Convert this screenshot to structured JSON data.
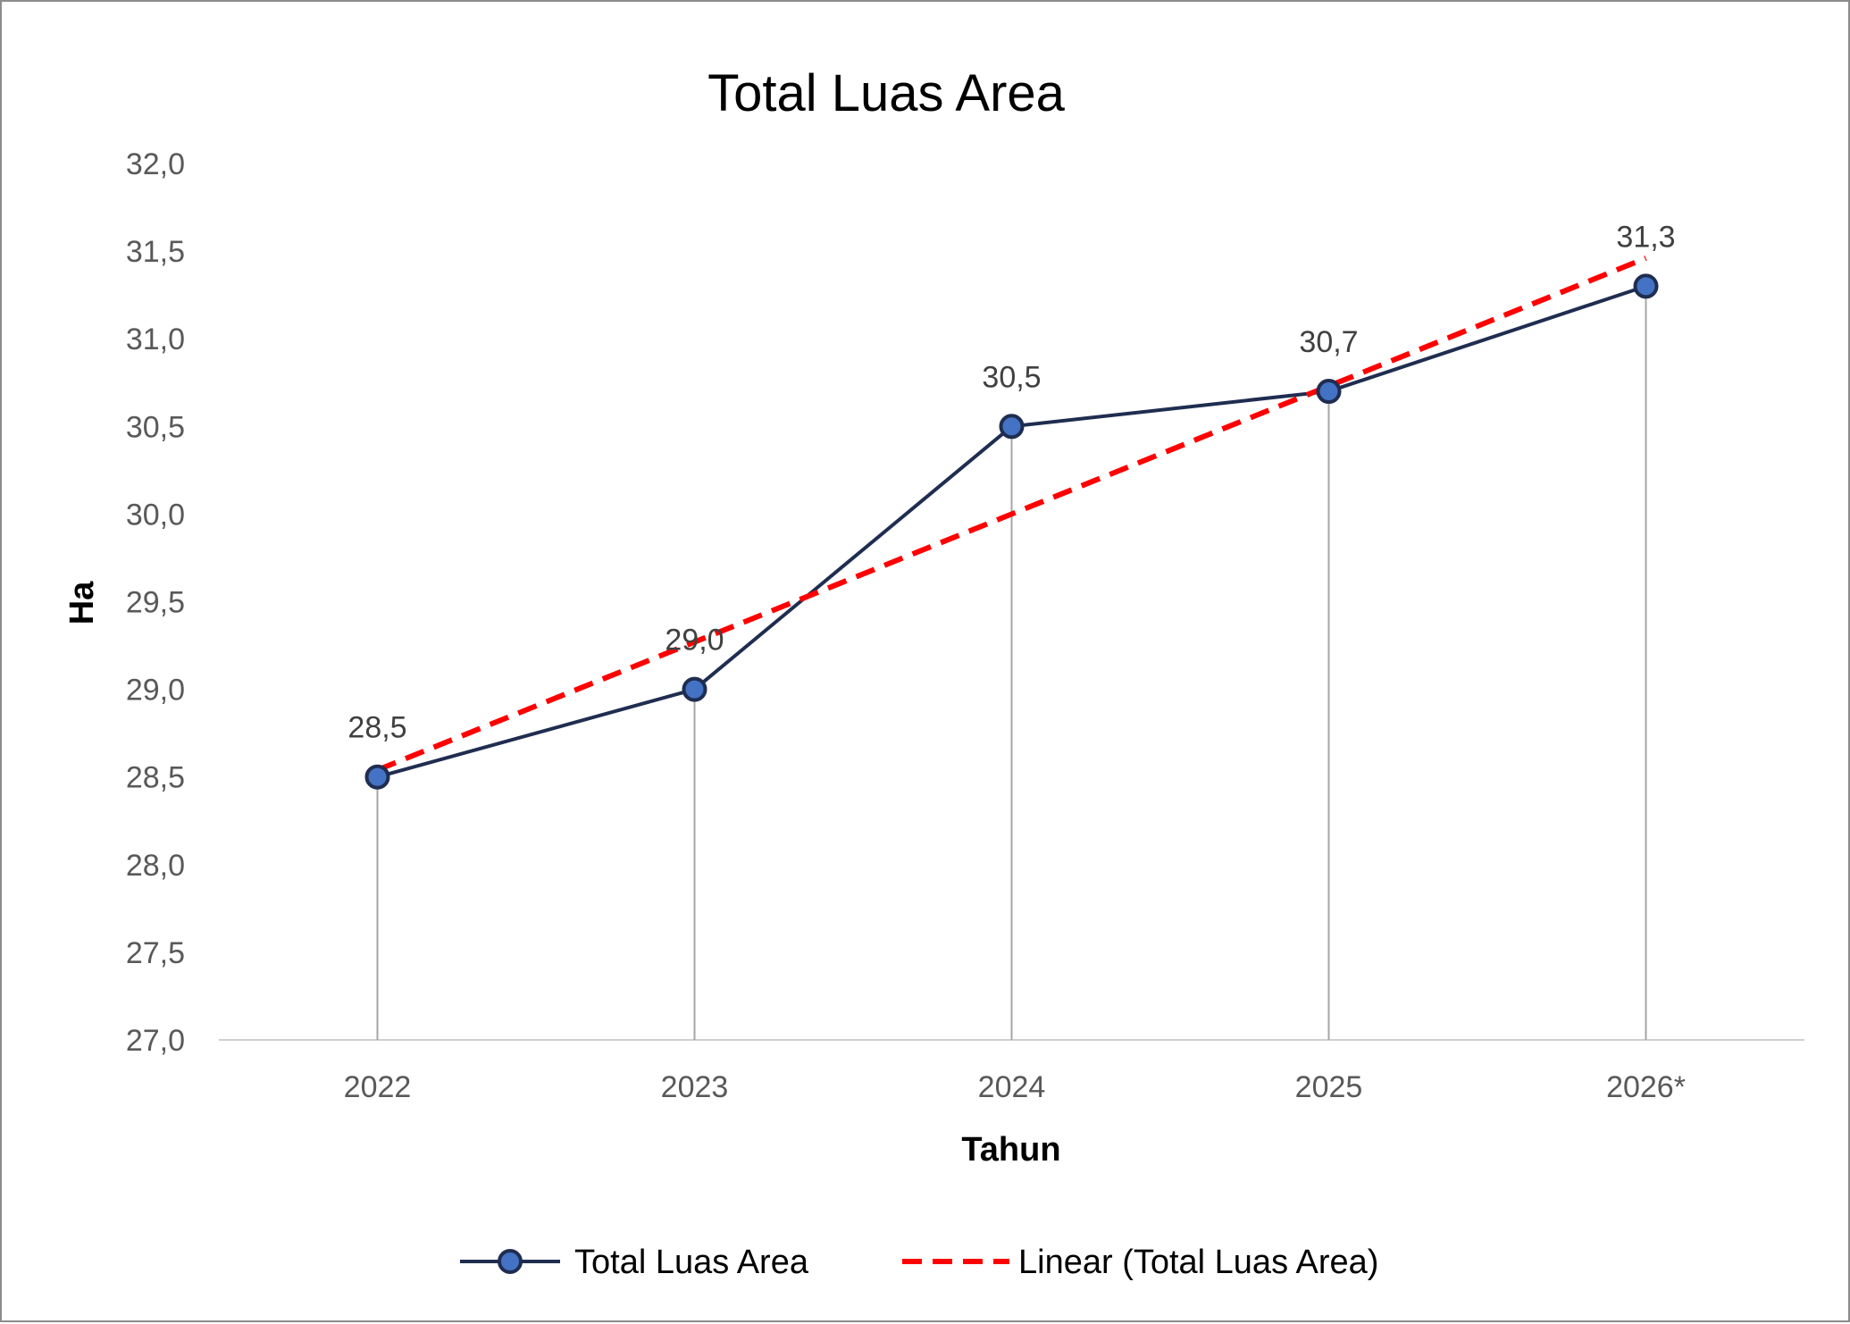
{
  "chart_data": {
    "type": "line",
    "title": "Total Luas Area",
    "xlabel": "Tahun",
    "ylabel": "Ha",
    "categories": [
      "2022",
      "2023",
      "2024",
      "2025",
      "2026*"
    ],
    "ylim": [
      27.0,
      32.0
    ],
    "ytick_step": 0.5,
    "yticks": [
      "27,0",
      "27,5",
      "28,0",
      "28,5",
      "29,0",
      "29,5",
      "30,0",
      "30,5",
      "31,0",
      "31,5",
      "32,0"
    ],
    "series": [
      {
        "name": "Total Luas Area",
        "values": [
          28.5,
          29.0,
          30.5,
          30.7,
          31.3
        ],
        "data_labels": [
          "28,5",
          "29,0",
          "30,5",
          "30,7",
          "31,3"
        ],
        "color": "#1f2d50",
        "marker_color": "#4472c4",
        "drop_lines": true
      }
    ],
    "trendline": {
      "name": "Linear (Total Luas Area)",
      "kind": "linear",
      "color": "#ff0000",
      "style": "dashed"
    },
    "grid": false,
    "legend": "bottom"
  }
}
